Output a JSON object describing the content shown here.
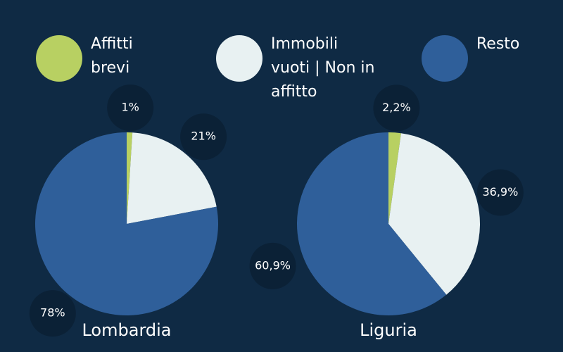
{
  "chart_data": {
    "type": "pie",
    "categories": [
      "Affitti brevi",
      "Immobili vuoti | Non in affitto",
      "Resto"
    ],
    "colors": [
      "#b8d062",
      "#e8f1f2",
      "#2f5f9a"
    ],
    "series": [
      {
        "name": "Lombardia",
        "values": [
          1,
          21,
          78
        ],
        "value_labels": [
          "1%",
          "21%",
          "78%"
        ]
      },
      {
        "name": "Liguria",
        "values": [
          2.2,
          36.9,
          60.9
        ],
        "value_labels": [
          "2,2%",
          "36,9%",
          "60,9%"
        ]
      }
    ]
  }
}
